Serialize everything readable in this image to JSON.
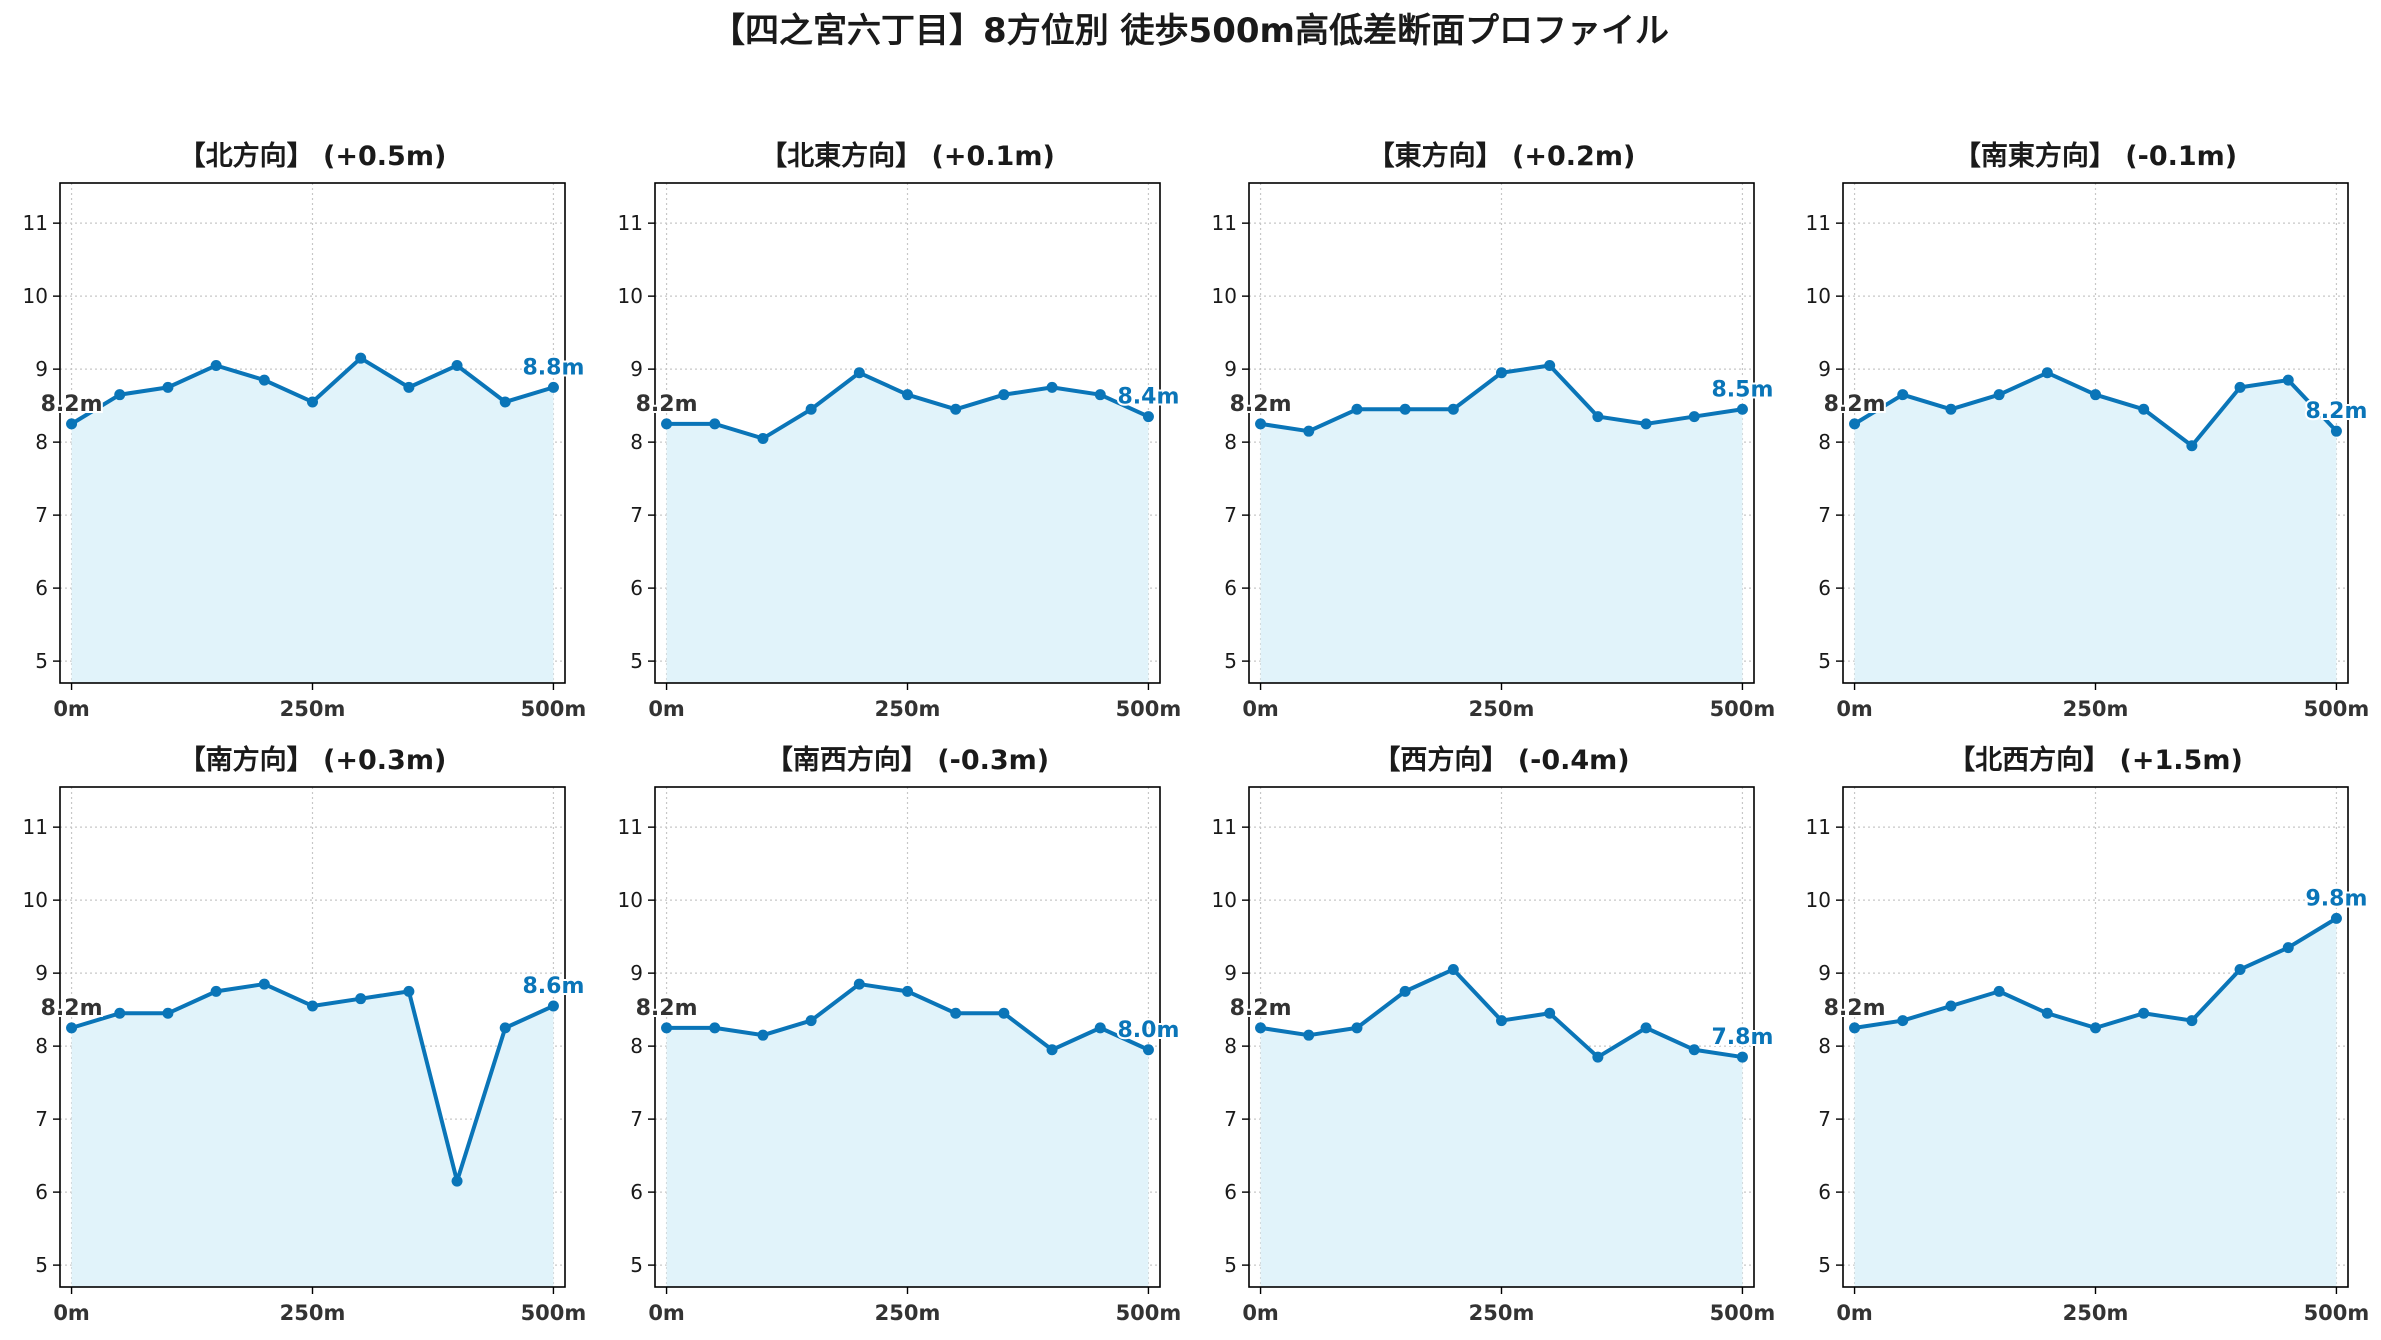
{
  "title": "【四之宮六丁目】8方位別 徒歩500m高低差断面プロファイル",
  "colors": {
    "line": "#0a75b8",
    "fill": "#e1f3fa",
    "grid": "#c7c7c7",
    "start_label": "#333333",
    "end_label": "#0a75b8",
    "axis": "#000000"
  },
  "chart_data": [
    {
      "type": "line",
      "title": "【北方向】 (+0.5m)",
      "x": [
        0,
        50,
        100,
        150,
        200,
        250,
        300,
        350,
        400,
        450,
        500
      ],
      "y": [
        8.25,
        8.65,
        8.75,
        9.05,
        8.85,
        8.55,
        9.15,
        8.75,
        9.05,
        8.55,
        8.75
      ],
      "start_label": "8.2m",
      "end_label": "8.8m",
      "xticks": [
        0,
        250,
        500
      ],
      "xtick_labels": [
        "0m",
        "250m",
        "500m"
      ],
      "yticks": [
        5,
        6,
        7,
        8,
        9,
        10,
        11
      ],
      "ytick_labels": [
        "5",
        "6",
        "7",
        "8",
        "9",
        "10",
        "11"
      ],
      "xlim": [
        -12,
        512
      ],
      "ylim": [
        4.7,
        11.55
      ],
      "grid": true,
      "fill_area": true
    },
    {
      "type": "line",
      "title": "【北東方向】 (+0.1m)",
      "x": [
        0,
        50,
        100,
        150,
        200,
        250,
        300,
        350,
        400,
        450,
        500
      ],
      "y": [
        8.25,
        8.25,
        8.05,
        8.45,
        8.95,
        8.65,
        8.45,
        8.65,
        8.75,
        8.65,
        8.35
      ],
      "start_label": "8.2m",
      "end_label": "8.4m",
      "xticks": [
        0,
        250,
        500
      ],
      "xtick_labels": [
        "0m",
        "250m",
        "500m"
      ],
      "yticks": [
        5,
        6,
        7,
        8,
        9,
        10,
        11
      ],
      "ytick_labels": [
        "5",
        "6",
        "7",
        "8",
        "9",
        "10",
        "11"
      ],
      "xlim": [
        -12,
        512
      ],
      "ylim": [
        4.7,
        11.55
      ],
      "grid": true,
      "fill_area": true
    },
    {
      "type": "line",
      "title": "【東方向】 (+0.2m)",
      "x": [
        0,
        50,
        100,
        150,
        200,
        250,
        300,
        350,
        400,
        450,
        500
      ],
      "y": [
        8.25,
        8.15,
        8.45,
        8.45,
        8.45,
        8.95,
        9.05,
        8.35,
        8.25,
        8.35,
        8.45
      ],
      "start_label": "8.2m",
      "end_label": "8.5m",
      "xticks": [
        0,
        250,
        500
      ],
      "xtick_labels": [
        "0m",
        "250m",
        "500m"
      ],
      "yticks": [
        5,
        6,
        7,
        8,
        9,
        10,
        11
      ],
      "ytick_labels": [
        "5",
        "6",
        "7",
        "8",
        "9",
        "10",
        "11"
      ],
      "xlim": [
        -12,
        512
      ],
      "ylim": [
        4.7,
        11.55
      ],
      "grid": true,
      "fill_area": true
    },
    {
      "type": "line",
      "title": "【南東方向】 (-0.1m)",
      "x": [
        0,
        50,
        100,
        150,
        200,
        250,
        300,
        350,
        400,
        450,
        500
      ],
      "y": [
        8.25,
        8.65,
        8.45,
        8.65,
        8.95,
        8.65,
        8.45,
        7.95,
        8.75,
        8.85,
        8.15
      ],
      "start_label": "8.2m",
      "end_label": "8.2m",
      "xticks": [
        0,
        250,
        500
      ],
      "xtick_labels": [
        "0m",
        "250m",
        "500m"
      ],
      "yticks": [
        5,
        6,
        7,
        8,
        9,
        10,
        11
      ],
      "ytick_labels": [
        "5",
        "6",
        "7",
        "8",
        "9",
        "10",
        "11"
      ],
      "xlim": [
        -12,
        512
      ],
      "ylim": [
        4.7,
        11.55
      ],
      "grid": true,
      "fill_area": true
    },
    {
      "type": "line",
      "title": "【南方向】 (+0.3m)",
      "x": [
        0,
        50,
        100,
        150,
        200,
        250,
        300,
        350,
        400,
        450,
        500
      ],
      "y": [
        8.25,
        8.45,
        8.45,
        8.75,
        8.85,
        8.55,
        8.65,
        8.75,
        6.15,
        8.25,
        8.55
      ],
      "start_label": "8.2m",
      "end_label": "8.6m",
      "xticks": [
        0,
        250,
        500
      ],
      "xtick_labels": [
        "0m",
        "250m",
        "500m"
      ],
      "yticks": [
        5,
        6,
        7,
        8,
        9,
        10,
        11
      ],
      "ytick_labels": [
        "5",
        "6",
        "7",
        "8",
        "9",
        "10",
        "11"
      ],
      "xlim": [
        -12,
        512
      ],
      "ylim": [
        4.7,
        11.55
      ],
      "grid": true,
      "fill_area": true
    },
    {
      "type": "line",
      "title": "【南西方向】 (-0.3m)",
      "x": [
        0,
        50,
        100,
        150,
        200,
        250,
        300,
        350,
        400,
        450,
        500
      ],
      "y": [
        8.25,
        8.25,
        8.15,
        8.35,
        8.85,
        8.75,
        8.45,
        8.45,
        7.95,
        8.25,
        7.95
      ],
      "start_label": "8.2m",
      "end_label": "8.0m",
      "xticks": [
        0,
        250,
        500
      ],
      "xtick_labels": [
        "0m",
        "250m",
        "500m"
      ],
      "yticks": [
        5,
        6,
        7,
        8,
        9,
        10,
        11
      ],
      "ytick_labels": [
        "5",
        "6",
        "7",
        "8",
        "9",
        "10",
        "11"
      ],
      "xlim": [
        -12,
        512
      ],
      "ylim": [
        4.7,
        11.55
      ],
      "grid": true,
      "fill_area": true
    },
    {
      "type": "line",
      "title": "【西方向】 (-0.4m)",
      "x": [
        0,
        50,
        100,
        150,
        200,
        250,
        300,
        350,
        400,
        450,
        500
      ],
      "y": [
        8.25,
        8.15,
        8.25,
        8.75,
        9.05,
        8.35,
        8.45,
        7.85,
        8.25,
        7.95,
        7.85
      ],
      "start_label": "8.2m",
      "end_label": "7.8m",
      "xticks": [
        0,
        250,
        500
      ],
      "xtick_labels": [
        "0m",
        "250m",
        "500m"
      ],
      "yticks": [
        5,
        6,
        7,
        8,
        9,
        10,
        11
      ],
      "ytick_labels": [
        "5",
        "6",
        "7",
        "8",
        "9",
        "10",
        "11"
      ],
      "xlim": [
        -12,
        512
      ],
      "ylim": [
        4.7,
        11.55
      ],
      "grid": true,
      "fill_area": true
    },
    {
      "type": "line",
      "title": "【北西方向】 (+1.5m)",
      "x": [
        0,
        50,
        100,
        150,
        200,
        250,
        300,
        350,
        400,
        450,
        500
      ],
      "y": [
        8.25,
        8.35,
        8.55,
        8.75,
        8.45,
        8.25,
        8.45,
        8.35,
        9.05,
        9.35,
        9.75
      ],
      "start_label": "8.2m",
      "end_label": "9.8m",
      "xticks": [
        0,
        250,
        500
      ],
      "xtick_labels": [
        "0m",
        "250m",
        "500m"
      ],
      "yticks": [
        5,
        6,
        7,
        8,
        9,
        10,
        11
      ],
      "ytick_labels": [
        "5",
        "6",
        "7",
        "8",
        "9",
        "10",
        "11"
      ],
      "xlim": [
        -12,
        512
      ],
      "ylim": [
        4.7,
        11.55
      ],
      "grid": true,
      "fill_area": true
    }
  ]
}
